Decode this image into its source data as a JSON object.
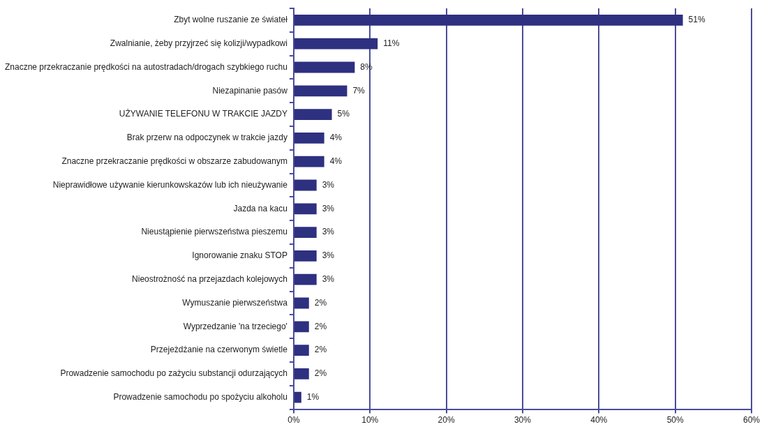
{
  "chart_data": {
    "type": "bar",
    "orientation": "horizontal",
    "categories": [
      "Zbyt wolne ruszanie ze świateł",
      "Zwalnianie, żeby przyjrzeć się kolizji/wypadkowi",
      "Znaczne przekraczanie prędkości na autostradach/drogach szybkiego ruchu",
      "Niezapinanie pasów",
      "UŻYWANIE TELEFONU W TRAKCIE JAZDY",
      "Brak przerw na odpoczynek w trakcie jazdy",
      "Znaczne przekraczanie prędkości w obszarze zabudowanym",
      "Nieprawidłowe używanie kierunkowskazów lub ich nieużywanie",
      "Jazda na kacu",
      "Nieustąpienie pierwszeństwa pieszemu",
      "Ignorowanie znaku STOP",
      "Nieostrożność na przejazdach kolejowych",
      "Wymuszanie pierwszeństwa",
      "Wyprzedzanie 'na trzeciego'",
      "Przejeżdżanie na czerwonym świetle",
      "Prowadzenie samochodu po zażyciu substancji odurzających",
      "Prowadzenie samochodu po spożyciu alkoholu"
    ],
    "values": [
      51,
      11,
      8,
      7,
      5,
      4,
      4,
      3,
      3,
      3,
      3,
      3,
      2,
      2,
      2,
      2,
      1
    ],
    "value_labels": [
      "51%",
      "11%",
      "8%",
      "7%",
      "5%",
      "4%",
      "4%",
      "3%",
      "3%",
      "3%",
      "3%",
      "3%",
      "2%",
      "2%",
      "2%",
      "2%",
      "1%"
    ],
    "color": "#2e3080",
    "xlim": [
      0,
      60
    ],
    "xticks": [
      {
        "value": 0,
        "label": "0%"
      },
      {
        "value": 10,
        "label": "10%"
      },
      {
        "value": 20,
        "label": "20%"
      },
      {
        "value": 30,
        "label": "30%"
      },
      {
        "value": 40,
        "label": "40%"
      },
      {
        "value": 50,
        "label": "50%"
      },
      {
        "value": 60,
        "label": "60%"
      }
    ],
    "grid": "x",
    "legend": false
  }
}
